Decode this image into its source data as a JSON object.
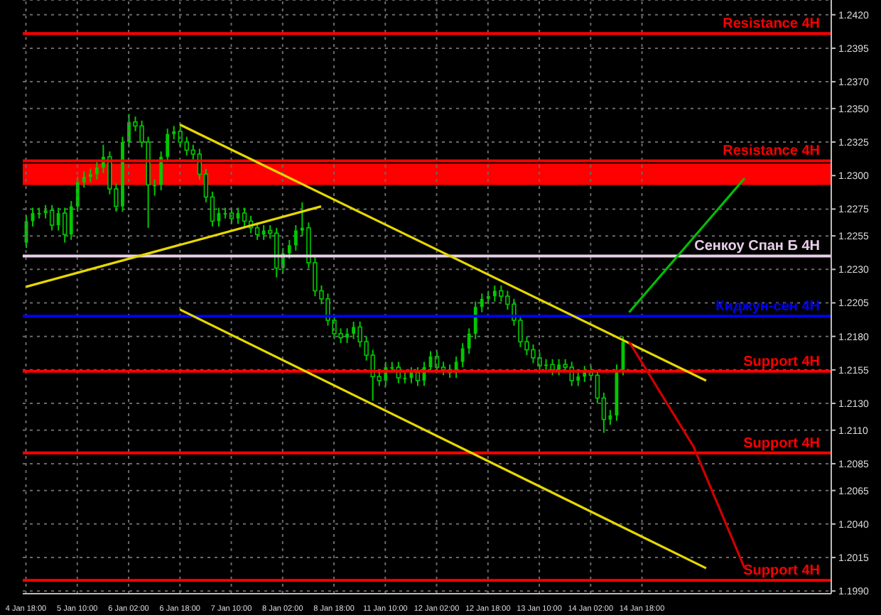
{
  "chart_data": {
    "type": "candlestick",
    "color": "#00c800",
    "categories": [
      "4 Jan 18:00",
      null,
      null,
      null,
      null,
      null,
      null,
      null,
      "5 Jan 10:00",
      null,
      null,
      null,
      null,
      null,
      null,
      null,
      "6 Jan 02:00",
      null,
      null,
      null,
      null,
      null,
      null,
      null,
      "6 Jan 18:00",
      null,
      null,
      null,
      null,
      null,
      null,
      null,
      "7 Jan 10:00",
      null,
      null,
      null,
      null,
      null,
      null,
      null,
      "8 Jan 02:00",
      null,
      null,
      null,
      null,
      null,
      null,
      null,
      "8 Jan 18:00",
      null,
      null,
      null,
      null,
      null,
      null,
      null,
      "11 Jan 10:00",
      null,
      null,
      null,
      null,
      null,
      null,
      null,
      "12 Jan 02:00",
      null,
      null,
      null,
      null,
      null,
      null,
      null,
      "12 Jan 18:00",
      null,
      null,
      null,
      null,
      null,
      null,
      null,
      "13 Jan 10:00",
      null,
      null,
      null,
      null,
      null,
      null,
      null,
      "14 Jan 02:00",
      null,
      null,
      null,
      null,
      null,
      null,
      null,
      "14 Jan 18:00",
      null,
      null,
      null,
      null,
      null,
      null,
      null,
      null,
      null,
      null,
      null,
      null,
      null,
      null,
      null,
      null,
      null,
      null,
      null,
      null,
      null,
      null,
      null,
      null,
      null,
      null,
      null,
      null,
      null
    ],
    "ohlc": [
      [
        1.225,
        1.227,
        1.2246,
        1.2266
      ],
      [
        1.2266,
        1.2276,
        1.2262,
        1.2272
      ],
      [
        1.2272,
        1.2276,
        1.2268,
        1.2272
      ],
      [
        1.2272,
        1.2278,
        1.2268,
        1.2274
      ],
      [
        1.2274,
        1.2278,
        1.2259,
        1.2263
      ],
      [
        1.2263,
        1.2276,
        1.2259,
        1.2272
      ],
      [
        1.2272,
        1.2276,
        1.225,
        1.2256
      ],
      [
        1.2256,
        1.2281,
        1.2252,
        1.2277
      ],
      [
        1.2277,
        1.2299,
        1.2273,
        1.2295
      ],
      [
        1.2295,
        1.2303,
        1.2291,
        1.2299
      ],
      [
        1.2299,
        1.2305,
        1.2295,
        1.2301
      ],
      [
        1.2301,
        1.231,
        1.2297,
        1.2306
      ],
      [
        1.2306,
        1.2323,
        1.2302,
        1.2314
      ],
      [
        1.2314,
        1.2318,
        1.2286,
        1.229
      ],
      [
        1.229,
        1.2294,
        1.2273,
        1.2277
      ],
      [
        1.2277,
        1.2329,
        1.2273,
        1.2325
      ],
      [
        1.2325,
        1.2346,
        1.2321,
        1.234
      ],
      [
        1.234,
        1.2344,
        1.2333,
        1.2337
      ],
      [
        1.2337,
        1.2341,
        1.2321,
        1.2325
      ],
      [
        1.2325,
        1.2329,
        1.2261,
        1.2293
      ],
      [
        1.2293,
        1.2297,
        1.2285,
        1.2293
      ],
      [
        1.2293,
        1.2318,
        1.2289,
        1.2314
      ],
      [
        1.2314,
        1.2335,
        1.231,
        1.2331
      ],
      [
        1.2331,
        1.2337,
        1.2327,
        1.2333
      ],
      [
        1.2333,
        1.2337,
        1.2321,
        1.2325
      ],
      [
        1.2325,
        1.2329,
        1.2315,
        1.2319
      ],
      [
        1.2319,
        1.2323,
        1.2312,
        1.2316
      ],
      [
        1.2316,
        1.232,
        1.2297,
        1.2301
      ],
      [
        1.2301,
        1.2305,
        1.228,
        1.2284
      ],
      [
        1.2284,
        1.2288,
        1.2262,
        1.2266
      ],
      [
        1.2266,
        1.2276,
        1.2262,
        1.2272
      ],
      [
        1.2272,
        1.2276,
        1.2268,
        1.2272
      ],
      [
        1.2272,
        1.2276,
        1.2264,
        1.2268
      ],
      [
        1.2268,
        1.2276,
        1.2264,
        1.2272
      ],
      [
        1.2272,
        1.2276,
        1.2262,
        1.2266
      ],
      [
        1.2266,
        1.227,
        1.2257,
        1.2261
      ],
      [
        1.2261,
        1.2265,
        1.2252,
        1.2256
      ],
      [
        1.2256,
        1.2263,
        1.2252,
        1.2259
      ],
      [
        1.2259,
        1.2263,
        1.2253,
        1.2257
      ],
      [
        1.2257,
        1.2261,
        1.2224,
        1.2231
      ],
      [
        1.2231,
        1.2246,
        1.2227,
        1.2242
      ],
      [
        1.2242,
        1.2252,
        1.2238,
        1.2248
      ],
      [
        1.2248,
        1.2263,
        1.2244,
        1.2259
      ],
      [
        1.2259,
        1.228,
        1.2255,
        1.2261
      ],
      [
        1.2261,
        1.2265,
        1.2231,
        1.2235
      ],
      [
        1.2235,
        1.2239,
        1.221,
        1.2214
      ],
      [
        1.2214,
        1.2218,
        1.2204,
        1.2208
      ],
      [
        1.2208,
        1.2212,
        1.2188,
        1.2192
      ],
      [
        1.2192,
        1.2196,
        1.2178,
        1.2182
      ],
      [
        1.2182,
        1.2186,
        1.2175,
        1.2179
      ],
      [
        1.2179,
        1.2186,
        1.2175,
        1.2182
      ],
      [
        1.2182,
        1.2191,
        1.2178,
        1.2187
      ],
      [
        1.2187,
        1.2191,
        1.2172,
        1.2176
      ],
      [
        1.2176,
        1.218,
        1.2162,
        1.2166
      ],
      [
        1.2166,
        1.217,
        1.2132,
        1.215
      ],
      [
        1.215,
        1.2154,
        1.2143,
        1.2147
      ],
      [
        1.2147,
        1.2161,
        1.2143,
        1.2157
      ],
      [
        1.2157,
        1.2161,
        1.2153,
        1.2157
      ],
      [
        1.2157,
        1.2161,
        1.2145,
        1.2149
      ],
      [
        1.2149,
        1.2153,
        1.2145,
        1.2149
      ],
      [
        1.2149,
        1.2157,
        1.2145,
        1.2153
      ],
      [
        1.2153,
        1.2157,
        1.2143,
        1.2147
      ],
      [
        1.2147,
        1.2161,
        1.2143,
        1.2157
      ],
      [
        1.2157,
        1.2169,
        1.2153,
        1.2165
      ],
      [
        1.2165,
        1.2169,
        1.2153,
        1.2157
      ],
      [
        1.2157,
        1.2161,
        1.2151,
        1.2155
      ],
      [
        1.2155,
        1.2159,
        1.2149,
        1.2153
      ],
      [
        1.2153,
        1.2165,
        1.2149,
        1.2161
      ],
      [
        1.2161,
        1.2175,
        1.2157,
        1.2171
      ],
      [
        1.2171,
        1.2186,
        1.2167,
        1.2182
      ],
      [
        1.2182,
        1.2206,
        1.2178,
        1.2202
      ],
      [
        1.2202,
        1.2212,
        1.2198,
        1.2208
      ],
      [
        1.2208,
        1.2214,
        1.2204,
        1.221
      ],
      [
        1.221,
        1.2218,
        1.2206,
        1.2214
      ],
      [
        1.2214,
        1.2218,
        1.2206,
        1.221
      ],
      [
        1.221,
        1.2214,
        1.22,
        1.2204
      ],
      [
        1.2204,
        1.2208,
        1.2188,
        1.2192
      ],
      [
        1.2192,
        1.2196,
        1.2172,
        1.2176
      ],
      [
        1.2176,
        1.218,
        1.2166,
        1.217
      ],
      [
        1.217,
        1.2174,
        1.216,
        1.2164
      ],
      [
        1.2164,
        1.2168,
        1.2154,
        1.2158
      ],
      [
        1.2158,
        1.2163,
        1.2154,
        1.2159
      ],
      [
        1.2159,
        1.2163,
        1.2151,
        1.2155
      ],
      [
        1.2155,
        1.2163,
        1.2151,
        1.2159
      ],
      [
        1.2159,
        1.2163,
        1.2153,
        1.2157
      ],
      [
        1.2157,
        1.2161,
        1.2143,
        1.2147
      ],
      [
        1.2147,
        1.2154,
        1.2143,
        1.215
      ],
      [
        1.215,
        1.2158,
        1.2146,
        1.2154
      ],
      [
        1.2154,
        1.2158,
        1.2147,
        1.2151
      ],
      [
        1.2151,
        1.2155,
        1.213,
        1.2134
      ],
      [
        1.2134,
        1.2138,
        1.2108,
        1.2118
      ],
      [
        1.2118,
        1.2125,
        1.2114,
        1.2121
      ],
      [
        1.2121,
        1.2159,
        1.2117,
        1.2155
      ],
      [
        1.2155,
        1.218,
        1.2151,
        1.2176
      ],
      null,
      null,
      null,
      null,
      null,
      null,
      null,
      null,
      null,
      null,
      null,
      null,
      null,
      null,
      null,
      null,
      null,
      null,
      null,
      null,
      null,
      null,
      null,
      null,
      null,
      null,
      null,
      null,
      null,
      null,
      null,
      null
    ],
    "series": [
      {
        "type": "line",
        "color": "#e6d800",
        "values": [
          null,
          null,
          null,
          null,
          null,
          null,
          null,
          null,
          null,
          null,
          null,
          null,
          null,
          null,
          null,
          null,
          null,
          null,
          null,
          null,
          null,
          null,
          null,
          null,
          1.2338,
          null,
          null,
          null,
          null,
          null,
          null,
          null,
          null,
          null,
          null,
          null,
          null,
          null,
          null,
          null,
          null,
          null,
          null,
          null,
          null,
          null,
          null,
          null,
          null,
          null,
          null,
          null,
          null,
          null,
          null,
          null,
          null,
          null,
          null,
          null,
          null,
          null,
          null,
          null,
          null,
          null,
          null,
          null,
          null,
          null,
          null,
          null,
          null,
          null,
          null,
          null,
          null,
          null,
          null,
          null,
          null,
          null,
          null,
          null,
          null,
          null,
          null,
          null,
          null,
          null,
          null,
          null,
          null,
          null,
          null,
          null,
          null,
          null,
          null,
          null,
          null,
          null,
          null,
          null,
          null,
          null,
          1.2147,
          null,
          null,
          null,
          null,
          null,
          null,
          null,
          null,
          null,
          null,
          null,
          null,
          null,
          null,
          null,
          null,
          null,
          null,
          null
        ]
      },
      {
        "type": "line",
        "color": "#e6d800",
        "values": [
          null,
          null,
          null,
          null,
          null,
          null,
          null,
          null,
          null,
          null,
          null,
          null,
          null,
          null,
          null,
          null,
          null,
          null,
          null,
          null,
          null,
          null,
          null,
          null,
          1.22,
          null,
          null,
          null,
          null,
          null,
          null,
          null,
          null,
          null,
          null,
          null,
          null,
          null,
          null,
          null,
          null,
          null,
          null,
          null,
          null,
          null,
          null,
          null,
          null,
          null,
          null,
          null,
          null,
          null,
          null,
          null,
          null,
          null,
          null,
          null,
          null,
          null,
          null,
          null,
          null,
          null,
          null,
          null,
          null,
          null,
          null,
          null,
          null,
          null,
          null,
          null,
          null,
          null,
          null,
          null,
          null,
          null,
          null,
          null,
          null,
          null,
          null,
          null,
          null,
          null,
          null,
          null,
          null,
          null,
          null,
          null,
          null,
          null,
          null,
          null,
          null,
          null,
          null,
          null,
          null,
          null,
          1.2007,
          null,
          null,
          null,
          null,
          null,
          null,
          null,
          null,
          null,
          null,
          null,
          null,
          null,
          null,
          null,
          null,
          null,
          null,
          null
        ]
      },
      {
        "type": "line",
        "color": "#e6d800",
        "values": [
          1.2217,
          null,
          null,
          null,
          null,
          null,
          null,
          null,
          null,
          null,
          null,
          null,
          null,
          null,
          null,
          null,
          null,
          null,
          null,
          null,
          null,
          null,
          null,
          null,
          null,
          null,
          null,
          null,
          null,
          null,
          null,
          null,
          null,
          null,
          null,
          null,
          null,
          null,
          null,
          null,
          null,
          null,
          null,
          null,
          null,
          null,
          1.2277,
          null,
          null,
          null,
          null,
          null,
          null,
          null,
          null,
          null,
          null,
          null,
          null,
          null,
          null,
          null,
          null,
          null,
          null,
          null,
          null,
          null,
          null,
          null,
          null,
          null,
          null,
          null,
          null,
          null,
          null,
          null,
          null,
          null,
          null,
          null,
          null,
          null,
          null,
          null,
          null,
          null,
          null,
          null,
          null,
          null,
          null,
          null,
          null,
          null,
          null,
          null,
          null,
          null,
          null,
          null,
          null,
          null,
          null,
          null,
          null,
          null,
          null,
          null,
          null,
          null,
          null,
          null,
          null,
          null,
          null,
          null,
          null,
          null,
          null,
          null,
          null,
          null,
          null,
          null
        ]
      },
      {
        "type": "line",
        "color": "#00c000",
        "values": [
          null,
          null,
          null,
          null,
          null,
          null,
          null,
          null,
          null,
          null,
          null,
          null,
          null,
          null,
          null,
          null,
          null,
          null,
          null,
          null,
          null,
          null,
          null,
          null,
          null,
          null,
          null,
          null,
          null,
          null,
          null,
          null,
          null,
          null,
          null,
          null,
          null,
          null,
          null,
          null,
          null,
          null,
          null,
          null,
          null,
          null,
          null,
          null,
          null,
          null,
          null,
          null,
          null,
          null,
          null,
          null,
          null,
          null,
          null,
          null,
          null,
          null,
          null,
          null,
          null,
          null,
          null,
          null,
          null,
          null,
          null,
          null,
          null,
          null,
          null,
          null,
          null,
          null,
          null,
          null,
          null,
          null,
          null,
          null,
          null,
          null,
          null,
          null,
          null,
          null,
          null,
          null,
          null,
          null,
          1.2198,
          null,
          null,
          null,
          null,
          null,
          null,
          null,
          null,
          null,
          null,
          null,
          null,
          null,
          null,
          null,
          null,
          null,
          1.2298,
          null,
          null,
          null,
          null,
          null,
          null,
          null,
          null,
          null,
          null,
          null,
          null,
          null
        ]
      },
      {
        "type": "line",
        "color": "#d00000",
        "values": [
          null,
          null,
          null,
          null,
          null,
          null,
          null,
          null,
          null,
          null,
          null,
          null,
          null,
          null,
          null,
          null,
          null,
          null,
          null,
          null,
          null,
          null,
          null,
          null,
          null,
          null,
          null,
          null,
          null,
          null,
          null,
          null,
          null,
          null,
          null,
          null,
          null,
          null,
          null,
          null,
          null,
          null,
          null,
          null,
          null,
          null,
          null,
          null,
          null,
          null,
          null,
          null,
          null,
          null,
          null,
          null,
          null,
          null,
          null,
          null,
          null,
          null,
          null,
          null,
          null,
          null,
          null,
          null,
          null,
          null,
          null,
          null,
          null,
          null,
          null,
          null,
          null,
          null,
          null,
          null,
          null,
          null,
          null,
          null,
          null,
          null,
          null,
          null,
          null,
          null,
          null,
          null,
          null,
          null,
          1.2176,
          null,
          null,
          null,
          null,
          null,
          null,
          null,
          null,
          null,
          1.2098,
          null,
          null,
          null,
          null,
          null,
          null,
          null,
          1.2007,
          null,
          null,
          null,
          null,
          null,
          null,
          null,
          null,
          null,
          null,
          null,
          null,
          null
        ]
      }
    ],
    "bands": [
      {
        "axis": "y",
        "from": 1.2293,
        "to": 1.2309,
        "color": "#ff0000"
      }
    ],
    "ref_lines": [
      {
        "axis": "y",
        "value": 1.2406,
        "label": "Resistance 4H",
        "color": "#ff0000"
      },
      {
        "axis": "y",
        "value": 1.2311,
        "label": "Resistance 4H",
        "color": "#ff0000"
      },
      {
        "axis": "y",
        "value": 1.224,
        "label": "Сенкоу Спан Б 4H",
        "color": "#e8d0e8"
      },
      {
        "axis": "y",
        "value": 1.2195,
        "label": "Киджун-сен 4H",
        "color": "#0000ff"
      },
      {
        "axis": "y",
        "value": 1.2154,
        "label": "Support 4H",
        "color": "#ff0000"
      },
      {
        "axis": "y",
        "value": 1.2093,
        "label": "Support 4H",
        "color": "#ff0000"
      },
      {
        "axis": "y",
        "value": 1.1998,
        "label": "Support 4H",
        "color": "#ff0000"
      }
    ],
    "ylim": [
      1.1988,
      1.2431
    ],
    "yticks": [
      {
        "value": 1.242,
        "label": "1.2420"
      },
      {
        "value": 1.2395,
        "label": "1.2395"
      },
      {
        "value": 1.237,
        "label": "1.2370"
      },
      {
        "value": 1.235,
        "label": "1.2350"
      },
      {
        "value": 1.2325,
        "label": "1.2325"
      },
      {
        "value": 1.23,
        "label": "1.2300"
      },
      {
        "value": 1.2275,
        "label": "1.2275"
      },
      {
        "value": 1.2255,
        "label": "1.2255"
      },
      {
        "value": 1.223,
        "label": "1.2230"
      },
      {
        "value": 1.2205,
        "label": "1.2205"
      },
      {
        "value": 1.218,
        "label": "1.2180"
      },
      {
        "value": 1.2155,
        "label": "1.2155"
      },
      {
        "value": 1.213,
        "label": "1.2130"
      },
      {
        "value": 1.211,
        "label": "1.2110"
      },
      {
        "value": 1.2085,
        "label": "1.2085"
      },
      {
        "value": 1.2065,
        "label": "1.2065"
      },
      {
        "value": 1.204,
        "label": "1.2040"
      },
      {
        "value": 1.2015,
        "label": "1.2015"
      },
      {
        "value": 1.199,
        "label": "1.1990"
      }
    ],
    "grid": true
  }
}
